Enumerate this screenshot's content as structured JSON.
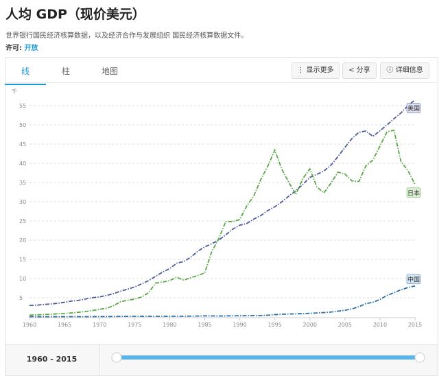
{
  "header": {
    "title": "人均 GDP（现价美元）",
    "source": "世界银行国民经济核算数据，以及经济合作与发展组织 国民经济核算数据文件。",
    "license_label": "许可:",
    "license_value": "开放"
  },
  "tabs": [
    "线",
    "柱",
    "地图"
  ],
  "buttons": [
    "显示更多",
    "分享",
    "详细信息"
  ],
  "footer": {
    "range": "1960 - 2015"
  },
  "chart_data": {
    "type": "line",
    "y_unit": "千",
    "x": [
      1960,
      1961,
      1962,
      1963,
      1964,
      1965,
      1966,
      1967,
      1968,
      1969,
      1970,
      1971,
      1972,
      1973,
      1974,
      1975,
      1976,
      1977,
      1978,
      1979,
      1980,
      1981,
      1982,
      1983,
      1984,
      1985,
      1986,
      1987,
      1988,
      1989,
      1990,
      1991,
      1992,
      1993,
      1994,
      1995,
      1996,
      1997,
      1998,
      1999,
      2000,
      2001,
      2002,
      2003,
      2004,
      2005,
      2006,
      2007,
      2008,
      2009,
      2010,
      2011,
      2012,
      2013,
      2014,
      2015
    ],
    "series": [
      {
        "name": "美国",
        "color": "#4a5a9a",
        "label_bg": "#dde0f0",
        "values": [
          3.0,
          3.07,
          3.24,
          3.38,
          3.57,
          3.83,
          4.15,
          4.33,
          4.69,
          5.03,
          5.23,
          5.61,
          6.09,
          6.73,
          7.24,
          7.82,
          8.6,
          9.47,
          10.59,
          11.7,
          12.6,
          13.99,
          14.43,
          15.54,
          17.12,
          18.24,
          19.07,
          20.0,
          21.38,
          22.86,
          23.89,
          24.34,
          25.47,
          26.39,
          27.69,
          28.69,
          29.97,
          31.46,
          32.85,
          34.51,
          36.33,
          37.13,
          37.99,
          39.49,
          41.72,
          44.12,
          46.44,
          48.06,
          48.4,
          47.0,
          48.47,
          49.98,
          51.6,
          53.1,
          55.0,
          56.5
        ]
      },
      {
        "name": "日本",
        "color": "#5aa646",
        "label_bg": "#dcefd6",
        "values": [
          0.48,
          0.56,
          0.63,
          0.72,
          0.84,
          0.92,
          1.06,
          1.23,
          1.45,
          1.67,
          2.04,
          2.27,
          2.95,
          3.99,
          4.35,
          4.66,
          5.2,
          6.34,
          8.82,
          9.1,
          9.46,
          10.36,
          9.58,
          10.21,
          10.79,
          11.47,
          16.99,
          20.39,
          24.83,
          24.81,
          25.36,
          28.92,
          31.47,
          35.77,
          39.27,
          43.44,
          38.44,
          35.02,
          31.9,
          36.03,
          38.53,
          33.85,
          32.29,
          34.81,
          37.69,
          37.22,
          35.43,
          35.28,
          39.34,
          40.86,
          44.51,
          48.17,
          48.6,
          40.45,
          38.1,
          34.5
        ]
      },
      {
        "name": "中国",
        "color": "#2b6ea8",
        "label_bg": "#d6e6f3",
        "values": [
          0.09,
          0.08,
          0.07,
          0.07,
          0.09,
          0.1,
          0.1,
          0.09,
          0.09,
          0.1,
          0.11,
          0.12,
          0.13,
          0.16,
          0.16,
          0.18,
          0.17,
          0.19,
          0.16,
          0.18,
          0.19,
          0.2,
          0.2,
          0.22,
          0.25,
          0.29,
          0.28,
          0.25,
          0.28,
          0.31,
          0.32,
          0.33,
          0.37,
          0.38,
          0.47,
          0.61,
          0.71,
          0.78,
          0.83,
          0.87,
          0.96,
          1.05,
          1.15,
          1.29,
          1.51,
          1.75,
          2.1,
          2.69,
          3.47,
          3.83,
          4.56,
          5.62,
          6.32,
          7.08,
          7.68,
          8.07
        ]
      }
    ],
    "xlim": [
      1960,
      2015
    ],
    "xticks": [
      1960,
      1965,
      1970,
      1975,
      1980,
      1985,
      1990,
      1995,
      2000,
      2005,
      2010,
      2015
    ],
    "ylim": [
      0,
      57.5
    ],
    "yticks": [
      5,
      10,
      15,
      20,
      25,
      30,
      35,
      40,
      45,
      50,
      55
    ],
    "grid": true
  }
}
